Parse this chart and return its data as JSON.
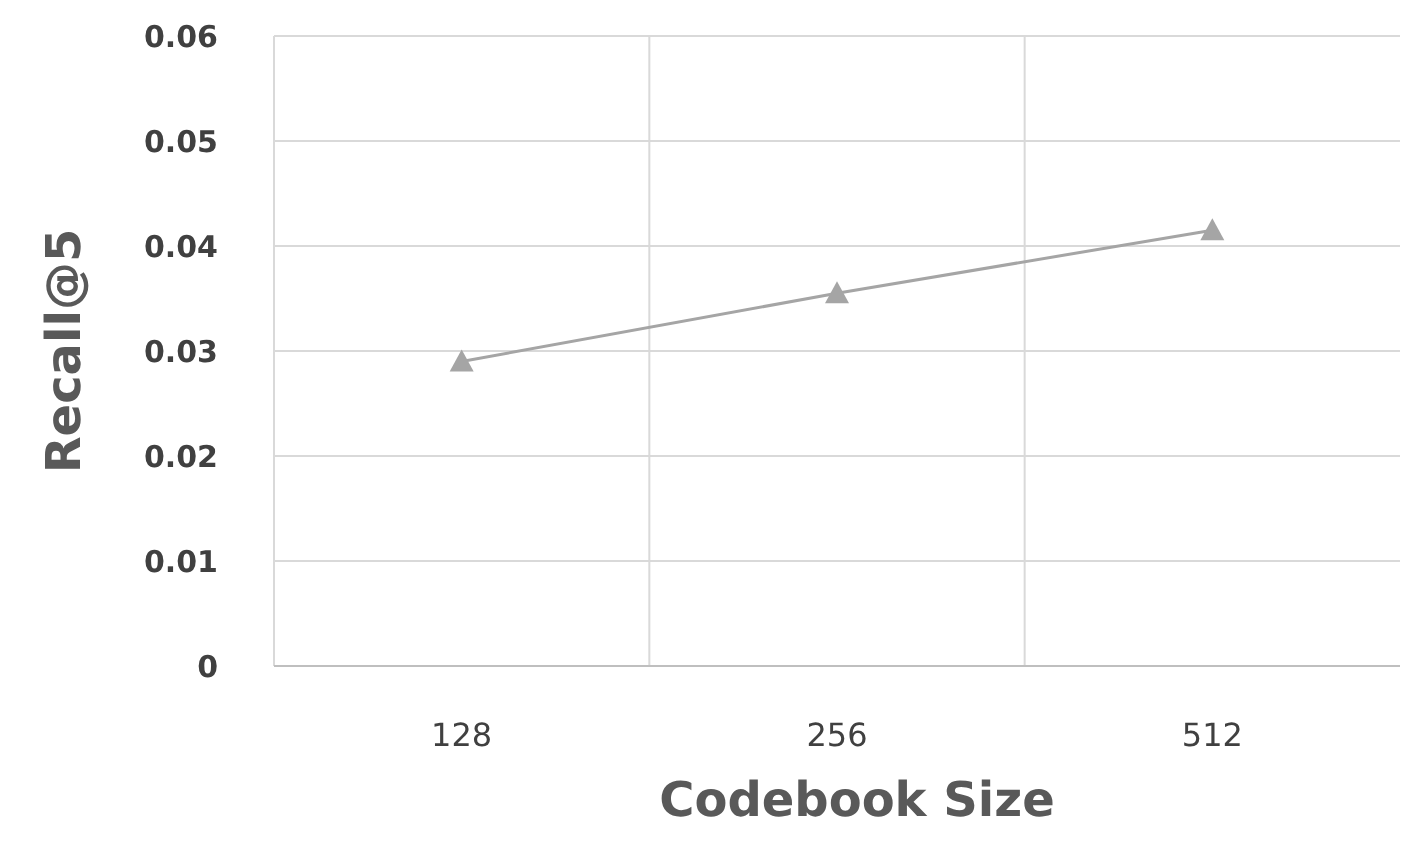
{
  "chart_data": {
    "type": "line",
    "xlabel": "Codebook Size",
    "ylabel": "Recall@5",
    "categories": [
      "128",
      "256",
      "512"
    ],
    "series": [
      {
        "color": "#a5a5a5",
        "values": [
          0.029,
          0.0355,
          0.0415
        ]
      }
    ],
    "ylim": [
      0,
      0.06
    ],
    "yticks": [
      0,
      0.01,
      0.02,
      0.03,
      0.04,
      0.05,
      0.06
    ],
    "grid": true,
    "marker": "triangle",
    "line_style": "solid"
  }
}
